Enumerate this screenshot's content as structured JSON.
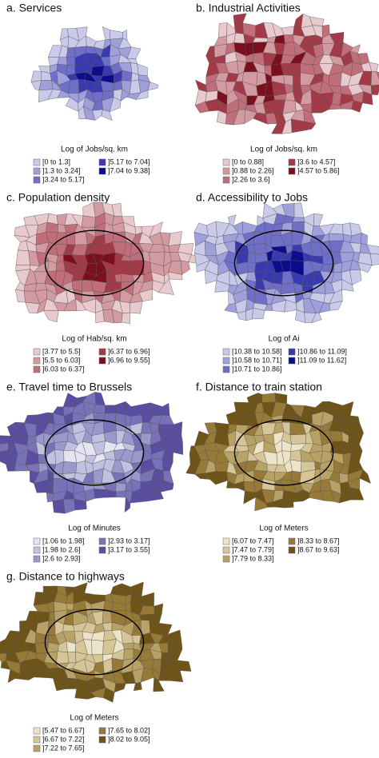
{
  "panels": [
    {
      "title": "a. Services",
      "legend_title": "Log of Jobs/sq. km",
      "classes": [
        {
          "label": "[0 to 1.3]",
          "color": "#c9c9ea"
        },
        {
          "label": "]1.3 to 3.24]",
          "color": "#9f9fdc"
        },
        {
          "label": "]3.24 to 5.17]",
          "color": "#6f6fc8"
        },
        {
          "label": "]5.17 to 7.04]",
          "color": "#3a3ab0"
        },
        {
          "label": "]7.04 to 9.38]",
          "color": "#0c0c8c"
        }
      ]
    },
    {
      "title": "b. Industrial Activities",
      "legend_title": "Log of Jobs/sq. km",
      "classes": [
        {
          "label": "[0 to 0.88]",
          "color": "#e8c9cd"
        },
        {
          "label": "]0.88 to 2.26]",
          "color": "#d49aa2"
        },
        {
          "label": "]2.26 to 3.6]",
          "color": "#c06e79"
        },
        {
          "label": "]3.6 to 4.57]",
          "color": "#a33a48"
        },
        {
          "label": "]4.57 to 5.86]",
          "color": "#7a0f1e"
        }
      ]
    },
    {
      "title": "c. Population density",
      "legend_title": "Log of Hab/sq. km",
      "classes": [
        {
          "label": "[3.77 to 5.5]",
          "color": "#e8c9cd"
        },
        {
          "label": "]5.5 to 6.03]",
          "color": "#d49aa2"
        },
        {
          "label": "]6.03 to 6.37]",
          "color": "#c06e79"
        },
        {
          "label": "]6.37 to 6.96]",
          "color": "#a33a48"
        },
        {
          "label": "]6.96 to 9.55]",
          "color": "#7a0f1e"
        }
      ]
    },
    {
      "title": "d. Accessibility to Jobs",
      "legend_title": "Log of Ai",
      "classes": [
        {
          "label": "[10.38 to 10.58]",
          "color": "#c9c9ea"
        },
        {
          "label": "]10.58 to 10.71]",
          "color": "#9f9fdc"
        },
        {
          "label": "]10.71 to 10.86]",
          "color": "#6f6fc8"
        },
        {
          "label": "]10.86 to 11.09]",
          "color": "#3a3ab0"
        },
        {
          "label": "]11.09 to 11.62]",
          "color": "#0c0c8c"
        }
      ]
    },
    {
      "title": "e. Travel time to Brussels",
      "legend_title": "Log of Minutes",
      "classes": [
        {
          "label": "[1.06 to 1.98]",
          "color": "#e4e4f2"
        },
        {
          "label": "]1.98 to 2.6]",
          "color": "#c2c0e0"
        },
        {
          "label": "]2.6 to 2.93]",
          "color": "#9d98cc"
        },
        {
          "label": "]2.93 to 3.17]",
          "color": "#7a72b8"
        },
        {
          "label": "]3.17 to 3.55]",
          "color": "#5a4ea0"
        }
      ]
    },
    {
      "title": "f. Distance to train station",
      "legend_title": "Log of Meters",
      "classes": [
        {
          "label": "[6.07 to 7.47]",
          "color": "#ede4c8"
        },
        {
          "label": "]7.47 to 7.79]",
          "color": "#d5c597"
        },
        {
          "label": "]7.79 to 8.33]",
          "color": "#b8a266"
        },
        {
          "label": "]8.33 to 8.67]",
          "color": "#977a38"
        },
        {
          "label": "]8.67 to 9.63]",
          "color": "#6e5418"
        }
      ]
    },
    {
      "title": "g. Distance to highways",
      "legend_title": "Log of Meters",
      "classes": [
        {
          "label": "[5.47 to 6.67]",
          "color": "#ede4c8"
        },
        {
          "label": "]6.67 to 7.22]",
          "color": "#d5c597"
        },
        {
          "label": "]7.22 to 7.65]",
          "color": "#b8a266"
        },
        {
          "label": "]7.65 to 8.02]",
          "color": "#977a38"
        },
        {
          "label": "]8.02 to 9.05]",
          "color": "#6e5418"
        }
      ]
    }
  ]
}
